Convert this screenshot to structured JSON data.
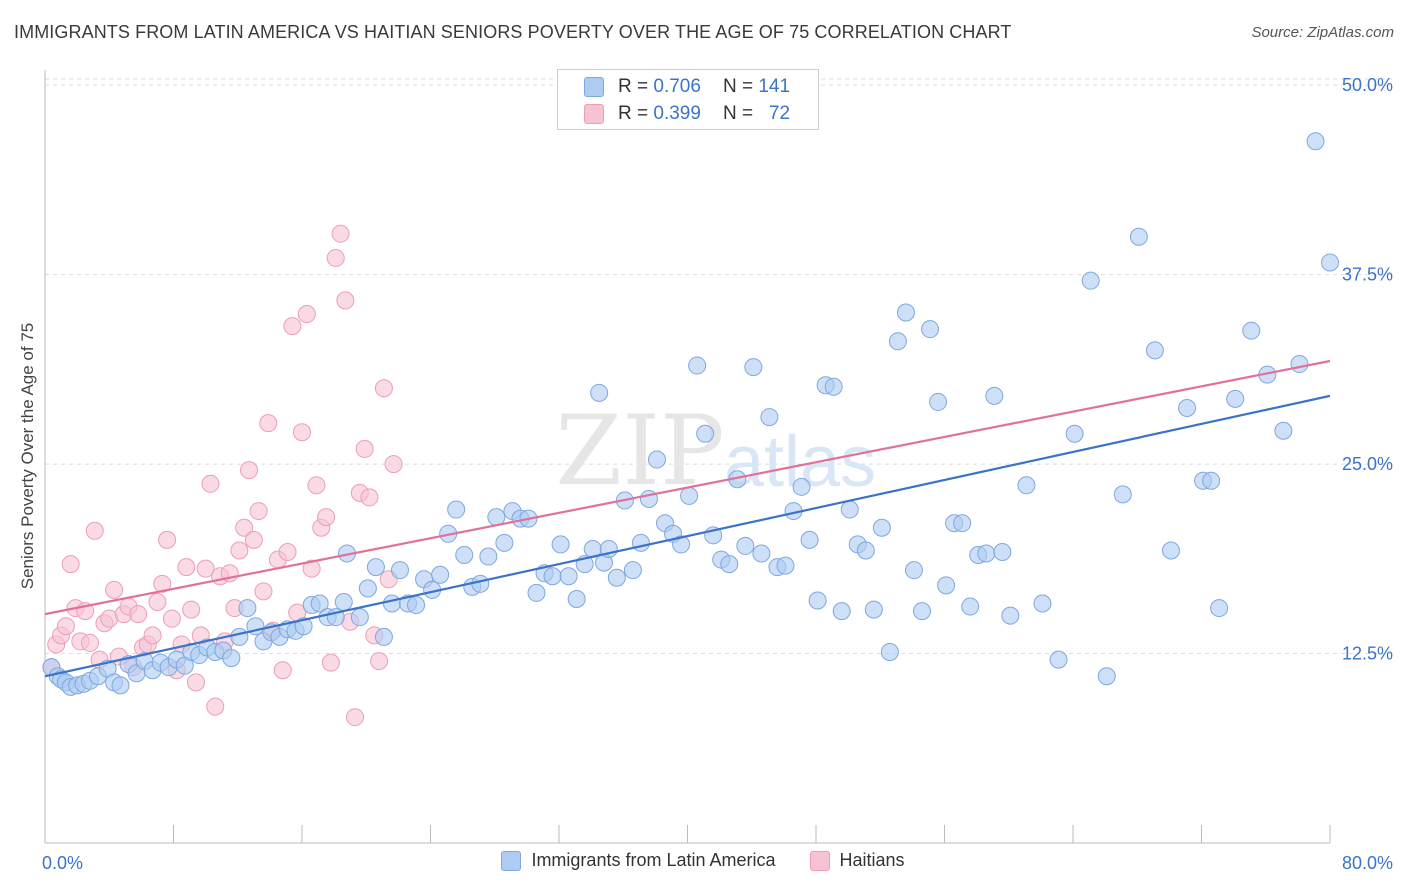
{
  "header": {
    "title": "IMMIGRANTS FROM LATIN AMERICA VS HAITIAN SENIORS POVERTY OVER THE AGE OF 75 CORRELATION CHART",
    "source": "Source: ZipAtlas.com"
  },
  "legend_top": {
    "rows": [
      {
        "r_label": "R =",
        "r_value": "0.706",
        "n_label": "N =",
        "n_value": "141"
      },
      {
        "r_label": "R =",
        "r_value": "0.399",
        "n_label": "N =",
        "n_value": "72"
      }
    ]
  },
  "legend_bottom": {
    "items": [
      {
        "label": "Immigrants from Latin America"
      },
      {
        "label": "Haitians"
      }
    ]
  },
  "colors": {
    "blue_fill": "#aecbf2",
    "blue_stroke": "#7fa7e0",
    "blue_line": "#3b73c9",
    "pink_fill": "#f6c3d3",
    "pink_stroke": "#ee9db7",
    "pink_line": "#e0729a",
    "axis_text": "#3b73c9",
    "grid": "#dddddd"
  },
  "watermark": {
    "zip": "ZIP",
    "atlas": "atlas"
  },
  "chart_data": {
    "type": "scatter",
    "title": "IMMIGRANTS FROM LATIN AMERICA VS HAITIAN SENIORS POVERTY OVER THE AGE OF 75 CORRELATION CHART",
    "xlabel": "",
    "ylabel": "Seniors Poverty Over the Age of 75",
    "xlim": [
      0,
      80
    ],
    "ylim": [
      0,
      51
    ],
    "x_tick_labels": [
      "0.0%",
      "80.0%"
    ],
    "y_ticks": [
      12.5,
      25.0,
      37.5,
      50.0
    ],
    "y_tick_labels": [
      "12.5%",
      "25.0%",
      "37.5%",
      "50.0%"
    ],
    "grid": true,
    "legend_position": "top-center",
    "series": [
      {
        "name": "Immigrants from Latin America",
        "color": "#aecbf2",
        "trend": {
          "x": [
            0,
            80
          ],
          "y": [
            11.0,
            29.5
          ]
        },
        "points": [
          [
            0.4,
            11.6
          ],
          [
            0.8,
            11.0
          ],
          [
            1.0,
            10.8
          ],
          [
            1.3,
            10.6
          ],
          [
            1.6,
            10.3
          ],
          [
            2.0,
            10.4
          ],
          [
            2.4,
            10.5
          ],
          [
            2.8,
            10.7
          ],
          [
            3.3,
            11.0
          ],
          [
            3.9,
            11.5
          ],
          [
            4.3,
            10.6
          ],
          [
            4.7,
            10.4
          ],
          [
            5.2,
            11.8
          ],
          [
            5.7,
            11.2
          ],
          [
            6.2,
            12.0
          ],
          [
            6.7,
            11.4
          ],
          [
            7.2,
            11.9
          ],
          [
            7.7,
            11.6
          ],
          [
            8.2,
            12.1
          ],
          [
            8.7,
            11.7
          ],
          [
            9.1,
            12.6
          ],
          [
            9.6,
            12.4
          ],
          [
            10.1,
            12.9
          ],
          [
            10.6,
            12.6
          ],
          [
            11.1,
            12.7
          ],
          [
            11.6,
            12.2
          ],
          [
            12.1,
            13.6
          ],
          [
            12.6,
            15.5
          ],
          [
            13.1,
            14.3
          ],
          [
            13.6,
            13.3
          ],
          [
            14.1,
            13.9
          ],
          [
            14.6,
            13.6
          ],
          [
            15.1,
            14.1
          ],
          [
            15.6,
            14.0
          ],
          [
            16.1,
            14.3
          ],
          [
            16.6,
            15.7
          ],
          [
            17.1,
            15.8
          ],
          [
            17.6,
            14.9
          ],
          [
            18.1,
            14.9
          ],
          [
            18.6,
            15.9
          ],
          [
            18.8,
            19.1
          ],
          [
            19.6,
            14.9
          ],
          [
            20.1,
            16.8
          ],
          [
            20.6,
            18.2
          ],
          [
            21.1,
            13.6
          ],
          [
            21.6,
            15.8
          ],
          [
            22.1,
            18.0
          ],
          [
            22.6,
            15.8
          ],
          [
            23.1,
            15.7
          ],
          [
            23.6,
            17.4
          ],
          [
            24.1,
            16.7
          ],
          [
            24.6,
            17.7
          ],
          [
            25.1,
            20.4
          ],
          [
            25.6,
            22.0
          ],
          [
            26.1,
            19.0
          ],
          [
            26.6,
            16.9
          ],
          [
            27.1,
            17.1
          ],
          [
            27.6,
            18.9
          ],
          [
            28.1,
            21.5
          ],
          [
            28.6,
            19.8
          ],
          [
            29.1,
            21.9
          ],
          [
            29.6,
            21.4
          ],
          [
            30.1,
            21.4
          ],
          [
            30.6,
            16.5
          ],
          [
            31.1,
            17.8
          ],
          [
            31.6,
            17.6
          ],
          [
            32.1,
            19.7
          ],
          [
            32.6,
            17.6
          ],
          [
            33.1,
            16.1
          ],
          [
            33.6,
            18.4
          ],
          [
            34.1,
            19.4
          ],
          [
            34.5,
            29.7
          ],
          [
            34.8,
            18.5
          ],
          [
            35.1,
            19.4
          ],
          [
            35.6,
            17.5
          ],
          [
            36.1,
            22.6
          ],
          [
            36.6,
            18.0
          ],
          [
            37.1,
            19.8
          ],
          [
            37.6,
            22.7
          ],
          [
            38.1,
            25.3
          ],
          [
            38.6,
            21.1
          ],
          [
            39.1,
            20.4
          ],
          [
            39.6,
            19.7
          ],
          [
            40.1,
            22.9
          ],
          [
            40.6,
            31.5
          ],
          [
            41.1,
            27.0
          ],
          [
            41.6,
            20.3
          ],
          [
            42.1,
            18.7
          ],
          [
            42.6,
            18.4
          ],
          [
            43.1,
            24.0
          ],
          [
            43.6,
            19.6
          ],
          [
            44.1,
            31.4
          ],
          [
            44.6,
            19.1
          ],
          [
            45.1,
            28.1
          ],
          [
            45.6,
            18.2
          ],
          [
            46.1,
            18.3
          ],
          [
            46.6,
            21.9
          ],
          [
            47.1,
            23.5
          ],
          [
            47.6,
            20.0
          ],
          [
            48.1,
            16.0
          ],
          [
            48.6,
            30.2
          ],
          [
            49.1,
            30.1
          ],
          [
            49.6,
            15.3
          ],
          [
            50.1,
            22.0
          ],
          [
            50.6,
            19.7
          ],
          [
            51.1,
            19.3
          ],
          [
            51.6,
            15.4
          ],
          [
            52.1,
            20.8
          ],
          [
            52.6,
            12.6
          ],
          [
            53.1,
            33.1
          ],
          [
            53.6,
            35.0
          ],
          [
            54.1,
            18.0
          ],
          [
            54.6,
            15.3
          ],
          [
            55.1,
            33.9
          ],
          [
            55.6,
            29.1
          ],
          [
            56.1,
            17.0
          ],
          [
            56.6,
            21.1
          ],
          [
            57.1,
            21.1
          ],
          [
            57.6,
            15.6
          ],
          [
            58.1,
            19.0
          ],
          [
            58.6,
            19.1
          ],
          [
            59.1,
            29.5
          ],
          [
            59.6,
            19.2
          ],
          [
            60.1,
            15.0
          ],
          [
            61.1,
            23.6
          ],
          [
            62.1,
            15.8
          ],
          [
            63.1,
            12.1
          ],
          [
            64.1,
            27.0
          ],
          [
            65.1,
            37.1
          ],
          [
            66.1,
            11.0
          ],
          [
            67.1,
            23.0
          ],
          [
            68.1,
            40.0
          ],
          [
            69.1,
            32.5
          ],
          [
            70.1,
            19.3
          ],
          [
            71.1,
            28.7
          ],
          [
            72.1,
            23.9
          ],
          [
            73.1,
            15.5
          ],
          [
            74.1,
            29.3
          ],
          [
            75.1,
            33.8
          ],
          [
            76.1,
            30.9
          ],
          [
            77.1,
            27.2
          ],
          [
            78.1,
            31.6
          ],
          [
            79.1,
            46.3
          ],
          [
            80.0,
            38.3
          ],
          [
            72.6,
            23.9
          ]
        ]
      },
      {
        "name": "Haitians",
        "color": "#f6c3d3",
        "trend": {
          "x": [
            0,
            80
          ],
          "y": [
            15.1,
            31.8
          ]
        },
        "points": [
          [
            0.4,
            11.6
          ],
          [
            0.7,
            13.1
          ],
          [
            1.0,
            13.7
          ],
          [
            1.3,
            14.3
          ],
          [
            1.6,
            18.4
          ],
          [
            1.9,
            15.5
          ],
          [
            2.2,
            13.3
          ],
          [
            2.5,
            15.3
          ],
          [
            2.8,
            13.2
          ],
          [
            3.1,
            20.6
          ],
          [
            3.4,
            12.1
          ],
          [
            3.7,
            14.5
          ],
          [
            4.0,
            14.8
          ],
          [
            4.3,
            16.7
          ],
          [
            4.6,
            12.3
          ],
          [
            4.9,
            15.1
          ],
          [
            5.2,
            15.6
          ],
          [
            5.5,
            11.6
          ],
          [
            5.8,
            15.1
          ],
          [
            6.1,
            12.9
          ],
          [
            6.4,
            13.1
          ],
          [
            6.7,
            13.7
          ],
          [
            7.0,
            15.9
          ],
          [
            7.3,
            17.1
          ],
          [
            7.6,
            20.0
          ],
          [
            7.9,
            14.8
          ],
          [
            8.2,
            11.4
          ],
          [
            8.5,
            13.1
          ],
          [
            8.8,
            18.2
          ],
          [
            9.1,
            15.4
          ],
          [
            9.4,
            10.6
          ],
          [
            9.7,
            13.7
          ],
          [
            10.0,
            18.1
          ],
          [
            10.3,
            23.7
          ],
          [
            10.6,
            9.0
          ],
          [
            10.9,
            17.6
          ],
          [
            11.2,
            13.3
          ],
          [
            11.5,
            17.8
          ],
          [
            11.8,
            15.5
          ],
          [
            12.1,
            19.3
          ],
          [
            12.4,
            20.8
          ],
          [
            12.7,
            24.6
          ],
          [
            13.0,
            20.0
          ],
          [
            13.3,
            21.9
          ],
          [
            13.6,
            16.6
          ],
          [
            13.9,
            27.7
          ],
          [
            14.2,
            14.0
          ],
          [
            14.5,
            18.7
          ],
          [
            14.8,
            11.4
          ],
          [
            15.1,
            19.2
          ],
          [
            15.4,
            34.1
          ],
          [
            15.7,
            15.2
          ],
          [
            16.0,
            27.1
          ],
          [
            16.3,
            34.9
          ],
          [
            16.6,
            18.1
          ],
          [
            16.9,
            23.6
          ],
          [
            17.2,
            20.8
          ],
          [
            17.5,
            21.5
          ],
          [
            17.8,
            11.9
          ],
          [
            18.1,
            38.6
          ],
          [
            18.4,
            40.2
          ],
          [
            18.7,
            35.8
          ],
          [
            19.0,
            14.6
          ],
          [
            19.3,
            8.3
          ],
          [
            19.6,
            23.1
          ],
          [
            19.9,
            26.0
          ],
          [
            20.2,
            22.8
          ],
          [
            20.5,
            13.7
          ],
          [
            20.8,
            12.0
          ],
          [
            21.1,
            30.0
          ],
          [
            21.4,
            17.4
          ],
          [
            21.7,
            25.0
          ]
        ]
      }
    ]
  }
}
